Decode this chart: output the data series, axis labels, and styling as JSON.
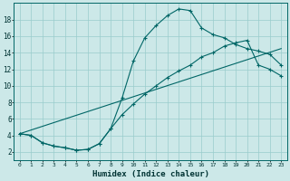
{
  "xlabel": "Humidex (Indice chaleur)",
  "bg_color": "#cce8e8",
  "grid_color": "#99cccc",
  "line_color": "#006666",
  "xlim": [
    -0.5,
    23.5
  ],
  "ylim": [
    1.0,
    20.0
  ],
  "yticks": [
    2,
    4,
    6,
    8,
    10,
    12,
    14,
    16,
    18
  ],
  "xticks": [
    0,
    1,
    2,
    3,
    4,
    5,
    6,
    7,
    8,
    9,
    10,
    11,
    12,
    13,
    14,
    15,
    16,
    17,
    18,
    19,
    20,
    21,
    22,
    23
  ],
  "curve1_x": [
    0,
    1,
    2,
    3,
    4,
    5,
    6,
    7,
    8,
    9,
    10,
    11,
    12,
    13,
    14,
    15,
    16,
    17,
    18,
    19,
    20,
    21,
    22,
    23
  ],
  "curve1_y": [
    4.2,
    4.0,
    3.1,
    2.7,
    2.5,
    2.2,
    2.3,
    3.0,
    4.8,
    8.5,
    13.0,
    15.8,
    17.3,
    18.5,
    19.3,
    19.1,
    17.0,
    16.2,
    15.8,
    15.0,
    14.5,
    14.2,
    13.8,
    12.5
  ],
  "curve2_x": [
    0,
    1,
    2,
    3,
    4,
    5,
    6,
    7,
    8,
    9,
    10,
    11,
    12,
    13,
    14,
    15,
    16,
    17,
    18,
    19,
    20,
    21,
    22,
    23
  ],
  "curve2_y": [
    4.2,
    4.0,
    3.1,
    2.7,
    2.5,
    2.2,
    2.3,
    3.0,
    4.8,
    6.5,
    7.8,
    9.0,
    10.0,
    11.0,
    11.8,
    12.5,
    13.5,
    14.0,
    14.8,
    15.2,
    15.5,
    12.5,
    12.0,
    11.2
  ],
  "line3_x": [
    0,
    23
  ],
  "line3_y": [
    4.2,
    14.5
  ]
}
